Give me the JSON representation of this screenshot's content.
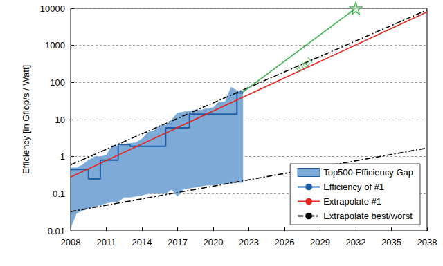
{
  "chart_data": {
    "type": "line",
    "ylabel": "Efficiency [in Gflop/s / Watt]",
    "xlim": [
      2008,
      2038
    ],
    "xticks": [
      2008,
      2011,
      2014,
      2017,
      2020,
      2023,
      2026,
      2029,
      2032,
      2035,
      2038
    ],
    "ylim": [
      0.01,
      10000
    ],
    "yticks": [
      0.01,
      0.1,
      1,
      10,
      100,
      1000,
      10000
    ],
    "log": "y",
    "grid": true,
    "legend": "lower right",
    "series": [
      {
        "name": "Top500 Efficiency Gap",
        "type": "range",
        "color": "#7eaad8",
        "x": [
          2008,
          2008.5,
          2009,
          2009.5,
          2010,
          2010.5,
          2011,
          2011.5,
          2012,
          2012.5,
          2013,
          2013.5,
          2014,
          2014.5,
          2015,
          2015.5,
          2016,
          2016.5,
          2017,
          2017.5,
          2018,
          2018.5,
          2019,
          2019.5,
          2020,
          2020.5,
          2021,
          2021.5,
          2022,
          2022.5
        ],
        "lower": [
          0.012,
          0.03,
          0.035,
          0.04,
          0.045,
          0.05,
          0.055,
          0.06,
          0.06,
          0.08,
          0.08,
          0.085,
          0.09,
          0.1,
          0.1,
          0.1,
          0.1,
          0.13,
          0.085,
          0.13,
          0.14,
          0.15,
          0.16,
          0.17,
          0.17,
          0.18,
          0.18,
          0.19,
          0.2,
          0.2
        ],
        "upper": [
          0.5,
          0.5,
          0.6,
          0.8,
          1,
          1,
          1.1,
          2,
          1.9,
          2.2,
          2.3,
          2.4,
          3,
          4.5,
          5,
          7,
          7,
          10,
          15,
          16,
          17,
          18,
          18,
          20,
          21,
          30,
          30,
          75,
          60,
          60
        ]
      },
      {
        "name": "Efficiency of #1",
        "type": "step",
        "color": "#1f5ea8",
        "x": [
          2008,
          2009.5,
          2010.5,
          2012,
          2013,
          2016,
          2018,
          2022,
          2022.5
        ],
        "values": [
          0.45,
          0.25,
          0.8,
          2.1,
          1.9,
          6,
          14,
          52,
          52
        ]
      },
      {
        "name": "Extrapolate #1",
        "type": "line",
        "color": "#e3261f",
        "x": [
          2008,
          2038
        ],
        "values": [
          0.28,
          8000
        ]
      },
      {
        "name": "Extrapolate best/worst",
        "type": "line",
        "color": "#000000",
        "line_style": "dashdot",
        "x": [
          2008,
          2038
        ],
        "values": [
          0.6,
          9000
        ]
      },
      {
        "name": "Extrapolate best/worst",
        "type": "line",
        "color": "#000000",
        "line_style": "dashdot",
        "x": [
          2008,
          2038
        ],
        "values": [
          0.033,
          1.7
        ]
      },
      {
        "type": "line",
        "color": "#3cb34a",
        "marker": "star",
        "x": [
          2022.5,
          2032
        ],
        "values": [
          55,
          10000
        ]
      }
    ],
    "annotations": [
      {
        "text": "Intel",
        "x": 2027.6,
        "y": 300,
        "color": "#3cb34a"
      }
    ]
  }
}
